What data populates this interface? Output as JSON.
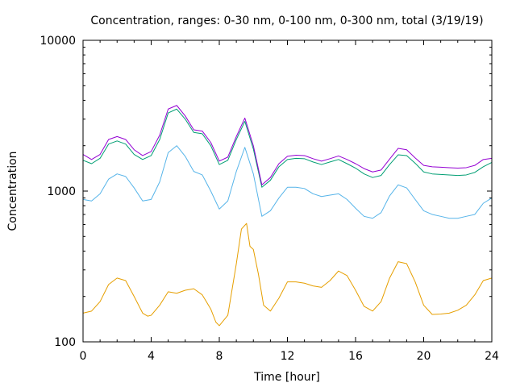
{
  "chart_data": {
    "type": "line",
    "title": "Concentration, ranges: 0-30 nm, 0-100 nm, 0-300 nm, total (3/19/19)",
    "xlabel": "Time [hour]",
    "ylabel": "Concentration",
    "xlim": [
      0,
      24
    ],
    "ylim": [
      100,
      10000
    ],
    "yscale": "log",
    "xticks": [
      0,
      4,
      8,
      12,
      16,
      20,
      24
    ],
    "xtick_labels": [
      "0",
      "4",
      "8",
      "12",
      "16",
      "20",
      "24"
    ],
    "yticks": [
      100,
      1000,
      10000
    ],
    "ytick_labels": [
      "100",
      "1000",
      "10000"
    ],
    "grid": false,
    "series": [
      {
        "name": "0-30 nm",
        "color": "#e69f00",
        "x": [
          0,
          0.5,
          1,
          1.5,
          2,
          2.5,
          3,
          3.5,
          3.8,
          4,
          4.5,
          5,
          5.5,
          6,
          6.5,
          7,
          7.5,
          7.8,
          8,
          8.5,
          9,
          9.3,
          9.6,
          9.8,
          10,
          10.3,
          10.6,
          11,
          11.5,
          12,
          12.5,
          13,
          13.5,
          14,
          14.5,
          15,
          15.5,
          16,
          16.5,
          17,
          17.5,
          18,
          18.5,
          19,
          19.5,
          20,
          20.5,
          21,
          21.5,
          22,
          22.5,
          23,
          23.5,
          24
        ],
        "y": [
          155,
          160,
          185,
          240,
          265,
          255,
          200,
          155,
          148,
          150,
          175,
          215,
          210,
          220,
          225,
          205,
          165,
          135,
          128,
          150,
          330,
          560,
          610,
          430,
          410,
          280,
          175,
          160,
          195,
          250,
          250,
          245,
          235,
          230,
          255,
          295,
          275,
          220,
          172,
          160,
          185,
          265,
          340,
          330,
          250,
          175,
          152,
          153,
          155,
          162,
          175,
          205,
          255,
          265
        ]
      },
      {
        "name": "0-100 nm",
        "color": "#56b4e9",
        "x": [
          0,
          0.5,
          1,
          1.5,
          2,
          2.5,
          3,
          3.5,
          4,
          4.5,
          5,
          5.5,
          6,
          6.5,
          7,
          7.5,
          8,
          8.5,
          9,
          9.5,
          10,
          10.5,
          11,
          11.5,
          12,
          12.5,
          13,
          13.5,
          14,
          14.5,
          15,
          15.5,
          16,
          16.5,
          17,
          17.5,
          18,
          18.5,
          19,
          19.5,
          20,
          20.5,
          21,
          21.5,
          22,
          22.5,
          23,
          23.5,
          24
        ],
        "y": [
          880,
          860,
          960,
          1200,
          1300,
          1250,
          1050,
          860,
          880,
          1150,
          1800,
          2000,
          1700,
          1350,
          1280,
          1000,
          760,
          860,
          1350,
          1950,
          1300,
          680,
          740,
          900,
          1060,
          1060,
          1040,
          960,
          920,
          940,
          960,
          880,
          770,
          680,
          660,
          720,
          930,
          1100,
          1050,
          880,
          740,
          700,
          680,
          660,
          660,
          680,
          700,
          830,
          900
        ]
      },
      {
        "name": "0-300 nm",
        "color": "#009e73",
        "x": [
          0,
          0.5,
          1,
          1.5,
          2,
          2.5,
          3,
          3.5,
          4,
          4.5,
          5,
          5.5,
          6,
          6.5,
          7,
          7.5,
          8,
          8.5,
          9,
          9.5,
          10,
          10.5,
          11,
          11.5,
          12,
          12.5,
          13,
          13.5,
          14,
          14.5,
          15,
          15.5,
          16,
          16.5,
          17,
          17.5,
          18,
          18.5,
          19,
          19.5,
          20,
          20.5,
          21,
          21.5,
          22,
          22.5,
          23,
          23.5,
          24
        ],
        "y": [
          1600,
          1520,
          1650,
          2050,
          2150,
          2050,
          1750,
          1620,
          1720,
          2200,
          3300,
          3500,
          3000,
          2450,
          2400,
          2000,
          1500,
          1600,
          2200,
          2900,
          1900,
          1060,
          1180,
          1450,
          1620,
          1650,
          1640,
          1560,
          1500,
          1560,
          1620,
          1520,
          1420,
          1300,
          1230,
          1270,
          1500,
          1740,
          1720,
          1530,
          1340,
          1300,
          1290,
          1280,
          1270,
          1280,
          1330,
          1450,
          1550
        ]
      },
      {
        "name": "total",
        "color": "#9400d3",
        "x": [
          0,
          0.5,
          1,
          1.5,
          2,
          2.5,
          3,
          3.5,
          4,
          4.5,
          5,
          5.5,
          6,
          6.5,
          7,
          7.5,
          8,
          8.5,
          9,
          9.5,
          10,
          10.5,
          11,
          11.5,
          12,
          12.5,
          13,
          13.5,
          14,
          14.5,
          15,
          15.5,
          16,
          16.5,
          17,
          17.5,
          18,
          18.5,
          19,
          19.5,
          20,
          20.5,
          21,
          21.5,
          22,
          22.5,
          23,
          23.5,
          24
        ],
        "y": [
          1750,
          1620,
          1750,
          2200,
          2300,
          2200,
          1880,
          1720,
          1830,
          2350,
          3500,
          3700,
          3150,
          2550,
          2500,
          2100,
          1580,
          1680,
          2300,
          3050,
          2000,
          1100,
          1230,
          1520,
          1700,
          1730,
          1720,
          1640,
          1580,
          1640,
          1710,
          1620,
          1520,
          1410,
          1340,
          1380,
          1630,
          1920,
          1880,
          1660,
          1480,
          1450,
          1440,
          1430,
          1420,
          1430,
          1480,
          1620,
          1650
        ]
      }
    ]
  }
}
